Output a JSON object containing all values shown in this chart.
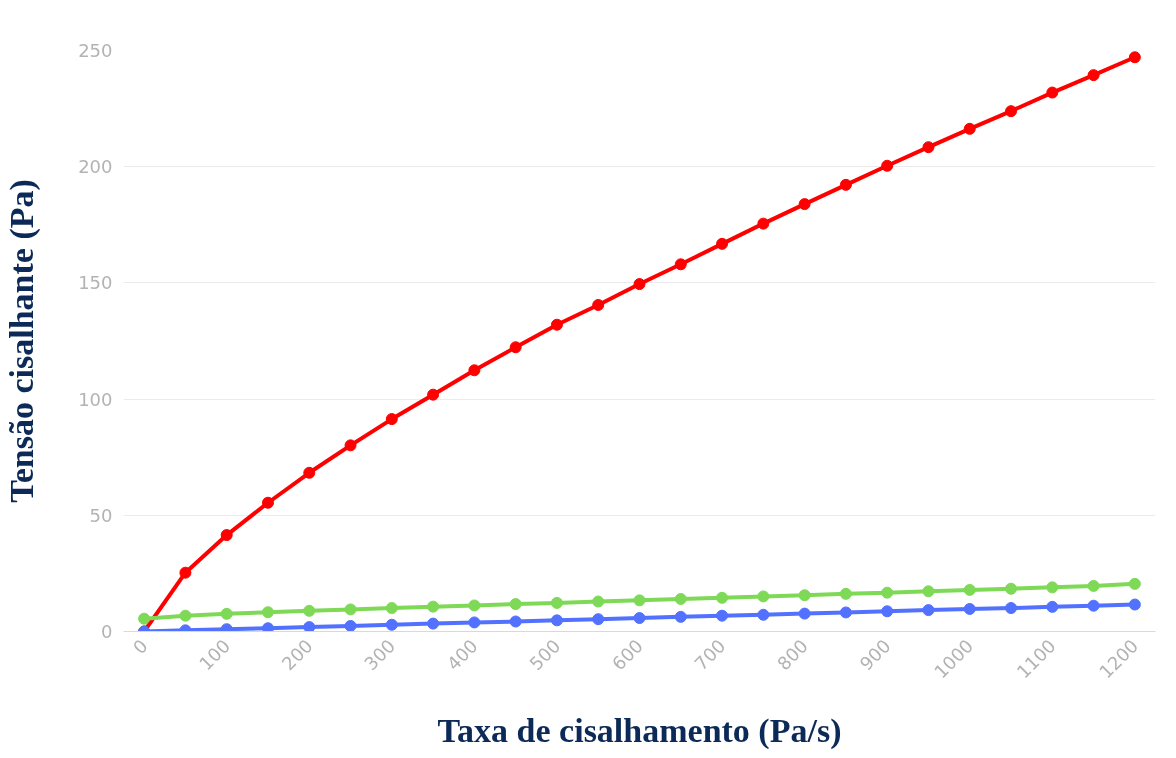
{
  "chart_data": {
    "type": "line",
    "xlabel": "Taxa de cisalhamento (Pa/s)",
    "ylabel": "Tensão cisalhante (Pa)",
    "x": [
      0,
      50,
      100,
      150,
      200,
      250,
      300,
      350,
      400,
      450,
      500,
      550,
      600,
      650,
      700,
      750,
      800,
      850,
      900,
      950,
      1000,
      1050,
      1100,
      1150,
      1200
    ],
    "series": [
      {
        "color": "#ff0000",
        "values": [
          0,
          25.3,
          41.5,
          55.4,
          68.3,
          80.1,
          91.4,
          101.9,
          112.4,
          122.3,
          132,
          140.5,
          149.5,
          158.0,
          166.8,
          175.5,
          183.9,
          192.2,
          200.4,
          208.4,
          216.3,
          223.9,
          231.9,
          239.4,
          247.1
        ]
      },
      {
        "color": "#7ed957",
        "values": [
          5.5,
          6.8,
          7.6,
          8.3,
          8.9,
          9.5,
          10.1,
          10.7,
          11.2,
          11.8,
          12.3,
          12.9,
          13.4,
          14.0,
          14.5,
          15.1,
          15.6,
          16.2,
          16.7,
          17.3,
          17.9,
          18.4,
          19.0,
          19.6,
          20.5
        ]
      },
      {
        "color": "#5271ff",
        "values": [
          0,
          0.5,
          1.0,
          1.4,
          1.9,
          2.4,
          2.9,
          3.4,
          3.9,
          4.3,
          4.8,
          5.3,
          5.8,
          6.3,
          6.8,
          7.2,
          7.7,
          8.2,
          8.7,
          9.2,
          9.7,
          10.1,
          10.6,
          11.1,
          11.6
        ]
      }
    ],
    "xlim": [
      -25,
      1225
    ],
    "ylim": [
      0,
      250
    ],
    "xticks": [
      0,
      100,
      200,
      300,
      400,
      500,
      600,
      700,
      800,
      900,
      1000,
      1100,
      1200
    ],
    "yticks": [
      0,
      50,
      100,
      150,
      200,
      250
    ],
    "grid": "y",
    "marker": "circle",
    "line_style": "solid"
  }
}
